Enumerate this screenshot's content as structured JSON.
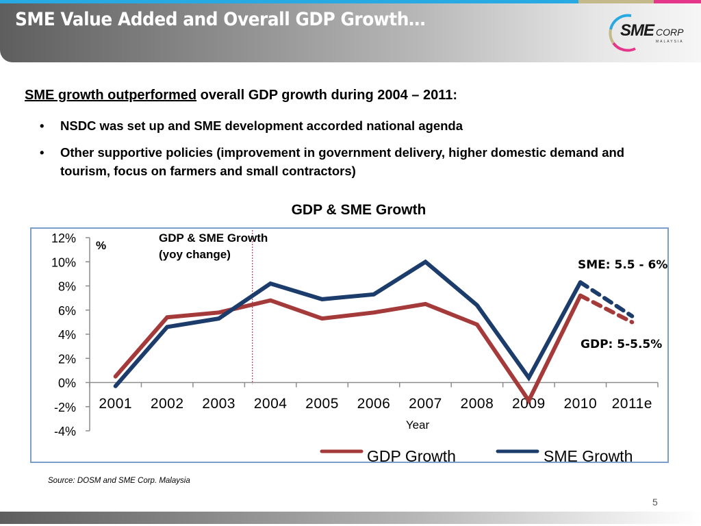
{
  "header": {
    "title": "SME Value Added and Overall GDP Growth…",
    "logo": {
      "main": "SME",
      "sub": "CORP",
      "country": "MALAYSIA"
    }
  },
  "brand_colors": {
    "blue": "#29a9e1",
    "tan": "#c3b98a",
    "pink": "#e4378b"
  },
  "headline": {
    "underlined": "SME growth outperformed",
    "rest": " overall GDP growth during 2004 – 2011:"
  },
  "bullets": [
    {
      "marker": "•",
      "text": "NSDC was set up and SME development accorded national agenda"
    },
    {
      "marker": "•",
      "text": "Other supportive policies (improvement in government delivery, higher domestic demand and tourism, focus on farmers and small contractors)"
    }
  ],
  "chart_data": {
    "type": "line",
    "title": "GDP & SME Growth",
    "inner_title": "GDP & SME Growth",
    "inner_subtitle": "(yoy change)",
    "unit_label": "%",
    "xlabel": "Year",
    "ylabel": "",
    "categories": [
      "2001",
      "2002",
      "2003",
      "2004",
      "2005",
      "2006",
      "2007",
      "2008",
      "2009",
      "2010",
      "2011e"
    ],
    "ylim": [
      -4,
      12
    ],
    "yticks": [
      12,
      10,
      8,
      6,
      4,
      2,
      0,
      -2,
      -4
    ],
    "ytick_labels": [
      "12%",
      "10%",
      "8%",
      "6%",
      "4%",
      "2%",
      "0%",
      "-2%",
      "-4%"
    ],
    "reference_line": {
      "x": "2004",
      "style": "dotted",
      "color": "#b0405a"
    },
    "series": [
      {
        "name": "GDP Growth",
        "color": "#a53a3a",
        "values": [
          0.5,
          5.4,
          5.8,
          6.8,
          5.3,
          5.8,
          6.5,
          4.8,
          -1.5,
          7.2,
          5.0
        ],
        "dashed_from_index": 9
      },
      {
        "name": "SME Growth",
        "color": "#1c3d6b",
        "values": [
          -0.3,
          4.6,
          5.3,
          8.2,
          6.9,
          7.3,
          10.0,
          6.4,
          0.4,
          8.3,
          5.5
        ],
        "dashed_from_index": 9
      }
    ],
    "annotations": [
      {
        "text": "SME: 5.5 - 6%",
        "series": "SME Growth"
      },
      {
        "text": "GDP: 5-5.5%",
        "series": "GDP Growth"
      }
    ],
    "legend": {
      "position": "bottom-right",
      "entries": [
        "GDP Growth",
        "SME Growth"
      ]
    },
    "grid": false
  },
  "footer": {
    "source": "Source: DOSM and SME Corp. Malaysia",
    "page_number": "5"
  }
}
